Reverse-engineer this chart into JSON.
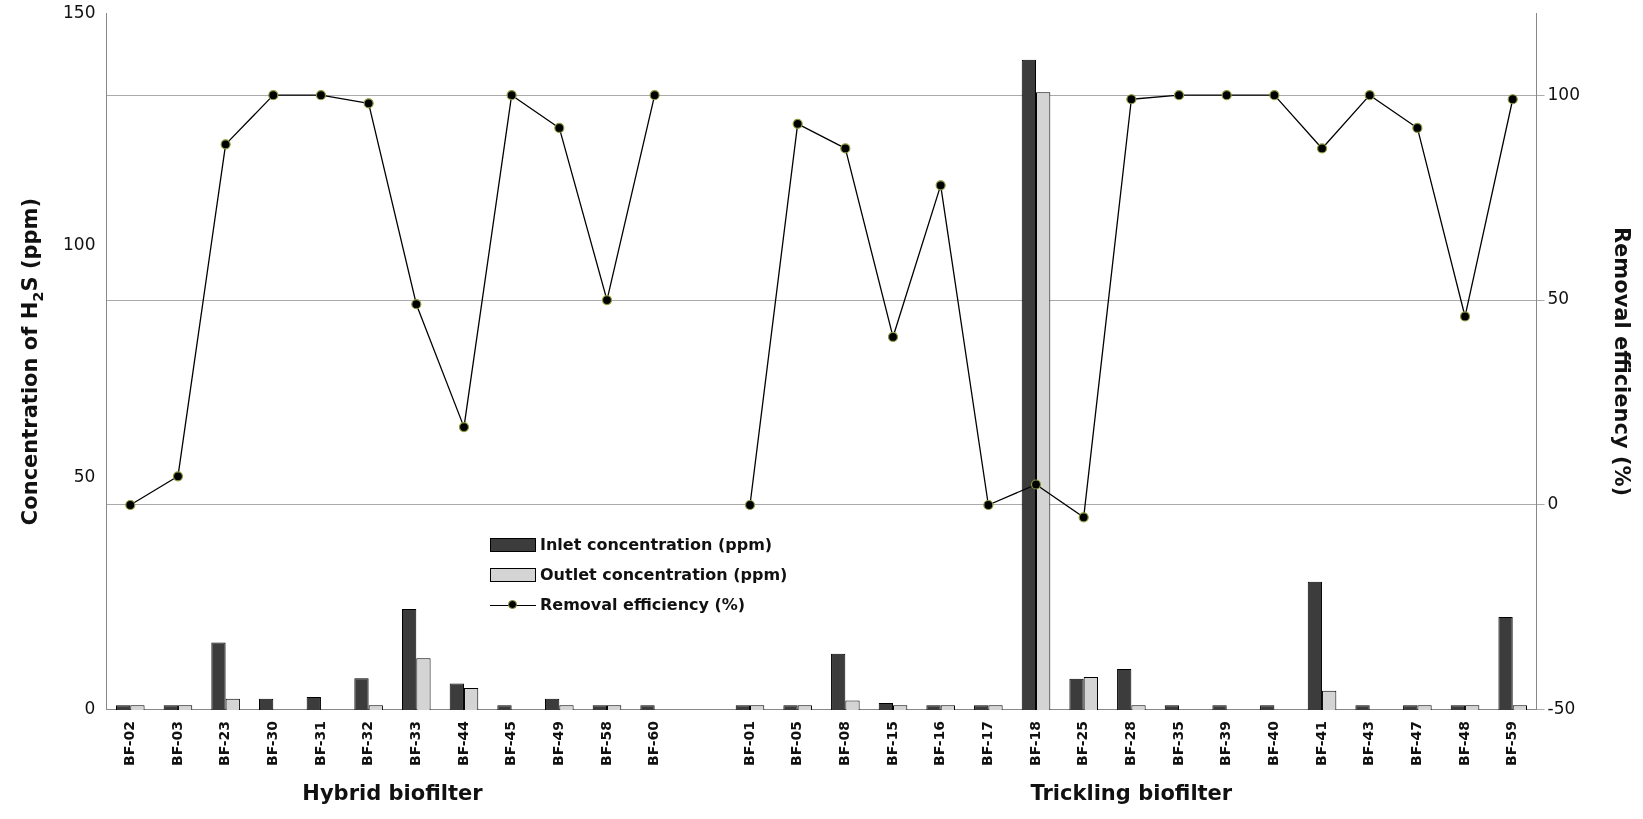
{
  "chart_data": {
    "type": "bar",
    "ylabel": "Concentration of H$_{2}$S (ppm)",
    "y2label": "Removal efficiency (%)",
    "categories": [
      "BF-02",
      "BF-03",
      "BF-23",
      "BF-30",
      "BF-31",
      "BF-32",
      "BF-33",
      "BF-44",
      "BF-45",
      "BF-49",
      "BF-58",
      "BF-60",
      null,
      "BF-01",
      "BF-05",
      "BF-08",
      "BF-15",
      "BF-16",
      "BF-17",
      "BF-18",
      "BF-25",
      "BF-28",
      "BF-35",
      "BF-39",
      "BF-40",
      "BF-41",
      "BF-43",
      "BF-47",
      "BF-48",
      "BF-59"
    ],
    "series": [
      {
        "name": "Inlet concentration (ppm)",
        "color": "#3c3c3c",
        "values": [
          1,
          1,
          14.5,
          2.4,
          2.8,
          6.8,
          21.7,
          5.7,
          1,
          2.4,
          1,
          1,
          null,
          1,
          1,
          12.1,
          1.5,
          1,
          1,
          140,
          6.7,
          8.8,
          1,
          1,
          1,
          27.6,
          1,
          1,
          1,
          20
        ]
      },
      {
        "name": "Outlet concentration (ppm)",
        "color": "#d4d4d4",
        "values": [
          1,
          1,
          2.4,
          0,
          0,
          1,
          11.1,
          4.7,
          0,
          1,
          1,
          0,
          null,
          1,
          1,
          2,
          1,
          1,
          1,
          133,
          7.1,
          1,
          0,
          0,
          0,
          4.1,
          0,
          1,
          1,
          1
        ]
      },
      {
        "name": "Removal efficiency (%)",
        "type": "line",
        "axis": "y2",
        "color": "#000000",
        "values": [
          0,
          7,
          88,
          100,
          100,
          98,
          49,
          19,
          100,
          92,
          50,
          100,
          null,
          0,
          93,
          87,
          41,
          78,
          0,
          5,
          -3,
          99,
          100,
          100,
          100,
          87,
          100,
          92,
          46,
          99
        ]
      }
    ],
    "ylim": [
      0,
      150
    ],
    "yticks": [
      0,
      50,
      100,
      150
    ],
    "y2lim": [
      -50,
      120
    ],
    "y2ticks": [
      -50,
      0,
      50,
      100
    ],
    "grid": "y2",
    "legend": "bottom left",
    "marker": "circle",
    "line_style": "solid",
    "annotations": [
      "Hybrid biofilter",
      "Trickling biofilter"
    ]
  }
}
